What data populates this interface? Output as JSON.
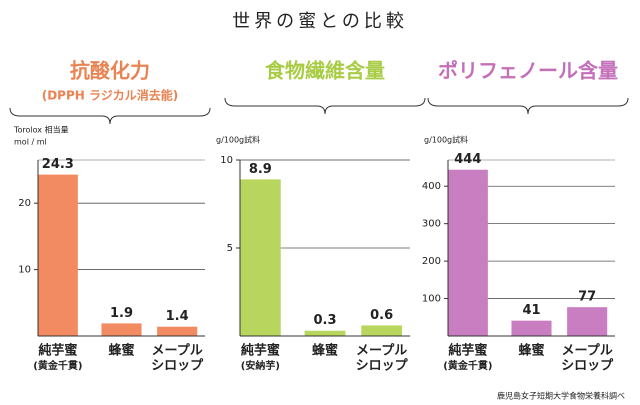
{
  "title": "世界の蜜との比較",
  "source": "鹿児島女子短期大学食物栄養科調べ",
  "chart_data": [
    {
      "type": "bar",
      "title": "抗酸化力",
      "subtitle": "(DPPH ラジカル消去能)",
      "title_color": "#ea8252",
      "ylabel": [
        "Torolox 相当量",
        "mol / ml"
      ],
      "categories": [
        [
          "純芋蜜",
          "(黄金千貫)"
        ],
        [
          "蜂蜜"
        ],
        [
          "メープル",
          "シロップ"
        ]
      ],
      "values": [
        24.3,
        1.9,
        1.4
      ],
      "color": "#f28a62",
      "ylim": [
        0,
        26.5
      ],
      "yticks": [
        10,
        20
      ],
      "grid": true
    },
    {
      "type": "bar",
      "title": "食物繊維含量",
      "title_color": "#a9cc45",
      "ylabel": [
        "g/100g試料"
      ],
      "categories": [
        [
          "純芋蜜",
          "(安納芋)"
        ],
        [
          "蜂蜜"
        ],
        [
          "メープル",
          "シロップ"
        ]
      ],
      "values": [
        8.9,
        0.3,
        0.6
      ],
      "color": "#b8d65e",
      "ylim": [
        0,
        10
      ],
      "yticks": [
        5,
        10
      ],
      "grid": true
    },
    {
      "type": "bar",
      "title": "ポリフェノール含量",
      "title_color": "#c46fb8",
      "ylabel": [
        "g/100g試料"
      ],
      "categories": [
        [
          "純芋蜜",
          "(黄金千貫)"
        ],
        [
          "蜂蜜"
        ],
        [
          "メープル",
          "シロップ"
        ]
      ],
      "values": [
        444,
        41,
        77
      ],
      "color": "#c87ec0",
      "ylim": [
        0,
        470
      ],
      "yticks": [
        100,
        200,
        300,
        400
      ],
      "grid": true
    }
  ]
}
